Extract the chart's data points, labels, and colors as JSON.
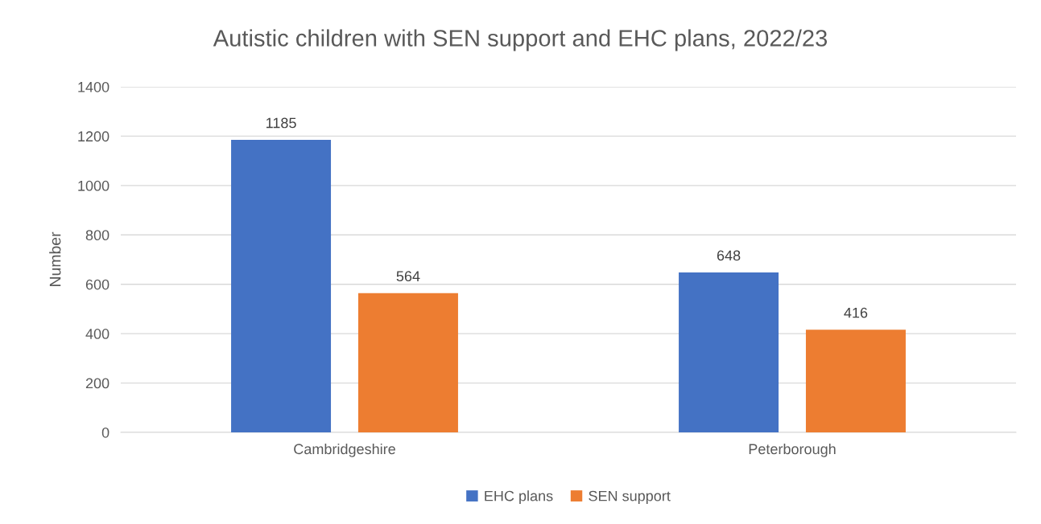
{
  "chart_data": {
    "type": "bar",
    "title": "Autistic children with SEN support and EHC plans, 2022/23",
    "ylabel": "Number",
    "categories": [
      "Cambridgeshire",
      "Peterborough"
    ],
    "series": [
      {
        "name": "EHC plans",
        "color": "#4472c4",
        "values": [
          1185,
          648
        ]
      },
      {
        "name": "SEN support",
        "color": "#ed7d31",
        "values": [
          564,
          416
        ]
      }
    ],
    "ylim": [
      0,
      1400
    ],
    "yticks": [
      0,
      200,
      400,
      600,
      800,
      1000,
      1200,
      1400
    ],
    "grid": "y",
    "legend": "bottom",
    "data_labels": true
  }
}
